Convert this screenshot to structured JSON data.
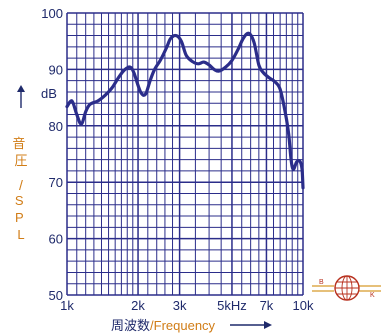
{
  "chart_data": {
    "type": "line",
    "x_scale": "log",
    "x_range": [
      1000,
      10000
    ],
    "y_range": [
      50,
      100
    ],
    "y_ticks": [
      {
        "value": 50,
        "label": "50"
      },
      {
        "value": 60,
        "label": "60"
      },
      {
        "value": 70,
        "label": "70"
      },
      {
        "value": 80,
        "label": "80"
      },
      {
        "value": 90,
        "label": "90"
      },
      {
        "value": 100,
        "label": "100"
      }
    ],
    "x_ticks": [
      {
        "value": 1000,
        "label": "1k"
      },
      {
        "value": 2000,
        "label": "2k"
      },
      {
        "value": 3000,
        "label": "3k"
      },
      {
        "value": 5000,
        "label": "5kHz"
      },
      {
        "value": 7000,
        "label": "7k"
      },
      {
        "value": 10000,
        "label": "10k"
      }
    ],
    "y_unit_label": "dB",
    "ylabel_cn": "音圧",
    "ylabel_sep": "/",
    "ylabel_en": "SPL",
    "xlabel_cn": "周波数",
    "xlabel_sep": "/",
    "xlabel_en": "Frequency",
    "grid": true,
    "series": [
      {
        "color": "#2b2d8a",
        "points": [
          [
            1000,
            83.4
          ],
          [
            1050,
            84.4
          ],
          [
            1100,
            82.0
          ],
          [
            1150,
            80.3
          ],
          [
            1200,
            82.5
          ],
          [
            1250,
            83.8
          ],
          [
            1350,
            84.4
          ],
          [
            1450,
            85.4
          ],
          [
            1550,
            86.7
          ],
          [
            1650,
            88.5
          ],
          [
            1750,
            89.9
          ],
          [
            1850,
            90.4
          ],
          [
            1920,
            89.4
          ],
          [
            2050,
            86.0
          ],
          [
            2150,
            85.6
          ],
          [
            2250,
            88.0
          ],
          [
            2350,
            90.0
          ],
          [
            2500,
            91.8
          ],
          [
            2650,
            94.0
          ],
          [
            2750,
            95.5
          ],
          [
            2900,
            96.0
          ],
          [
            3050,
            95.0
          ],
          [
            3200,
            92.5
          ],
          [
            3400,
            91.4
          ],
          [
            3600,
            91.0
          ],
          [
            3800,
            91.3
          ],
          [
            4000,
            90.8
          ],
          [
            4200,
            90.0
          ],
          [
            4400,
            89.7
          ],
          [
            4700,
            90.4
          ],
          [
            5000,
            91.6
          ],
          [
            5300,
            93.5
          ],
          [
            5600,
            95.6
          ],
          [
            5900,
            96.4
          ],
          [
            6200,
            94.8
          ],
          [
            6500,
            90.8
          ],
          [
            6800,
            89.4
          ],
          [
            7200,
            88.5
          ],
          [
            7600,
            87.8
          ],
          [
            8000,
            86.5
          ],
          [
            8400,
            82.5
          ],
          [
            8700,
            78.5
          ],
          [
            8900,
            74.0
          ],
          [
            9100,
            72.3
          ],
          [
            9400,
            73.6
          ],
          [
            9700,
            73.7
          ],
          [
            9900,
            72.4
          ],
          [
            10000,
            69.0
          ]
        ]
      }
    ]
  },
  "logo": {
    "left_letter": "B",
    "right_letter": "K",
    "globe_color": "#b8311f",
    "accent_color": "#d89a2b"
  },
  "colors": {
    "grid": "#2b2d8a",
    "tick_text": "#1f2a6b",
    "orange": "#d17d17"
  }
}
